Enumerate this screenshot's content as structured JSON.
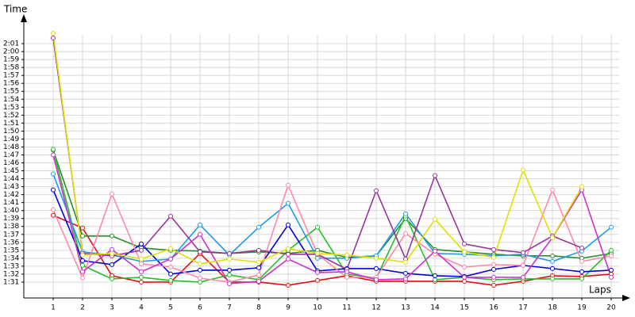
{
  "chart_data": {
    "type": "line",
    "y_label": "Time",
    "x_label": "Laps",
    "x": [
      1,
      2,
      3,
      4,
      5,
      6,
      7,
      8,
      9,
      10,
      11,
      12,
      13,
      14,
      15,
      16,
      17,
      18,
      19,
      20
    ],
    "xlim": [
      0,
      20.4
    ],
    "xticks": [
      1,
      2,
      3,
      4,
      5,
      6,
      7,
      8,
      9,
      10,
      11,
      12,
      13,
      14,
      15,
      16,
      17,
      18,
      19,
      20
    ],
    "ylim": [
      89,
      123
    ],
    "yticks": [
      {
        "value": 91,
        "label": "1:31"
      },
      {
        "value": 92,
        "label": "1:32"
      },
      {
        "value": 93,
        "label": "1:33"
      },
      {
        "value": 94,
        "label": "1:34"
      },
      {
        "value": 95,
        "label": "1:35"
      },
      {
        "value": 96,
        "label": "1:36"
      },
      {
        "value": 97,
        "label": "1:37"
      },
      {
        "value": 98,
        "label": "1:38"
      },
      {
        "value": 99,
        "label": "1:39"
      },
      {
        "value": 100,
        "label": "1:40"
      },
      {
        "value": 101,
        "label": "1:41"
      },
      {
        "value": 102,
        "label": "1:42"
      },
      {
        "value": 103,
        "label": "1:43"
      },
      {
        "value": 104,
        "label": "1:44"
      },
      {
        "value": 105,
        "label": "1:45"
      },
      {
        "value": 106,
        "label": "1:46"
      },
      {
        "value": 107,
        "label": "1:47"
      },
      {
        "value": 108,
        "label": "1:48"
      },
      {
        "value": 109,
        "label": "1:49"
      },
      {
        "value": 110,
        "label": "1:50"
      },
      {
        "value": 111,
        "label": "1:51"
      },
      {
        "value": 112,
        "label": "1:52"
      },
      {
        "value": 113,
        "label": "1:53"
      },
      {
        "value": 114,
        "label": "1:54"
      },
      {
        "value": 115,
        "label": "1:55"
      },
      {
        "value": 116,
        "label": "1:56"
      },
      {
        "value": 117,
        "label": "1:57"
      },
      {
        "value": 118,
        "label": "1:58"
      },
      {
        "value": 119,
        "label": "1:59"
      },
      {
        "value": 120,
        "label": "2:00"
      },
      {
        "value": 121,
        "label": "2:01"
      }
    ],
    "grid": true,
    "series": [
      {
        "color": "#e01010",
        "values": [
          99.4,
          97.8,
          91.8,
          91,
          91,
          94.6,
          91,
          91,
          90.6,
          91.2,
          91.8,
          91.1,
          91.1,
          91.1,
          91.1,
          90.6,
          91.1,
          91.8,
          91.7,
          92
        ]
      },
      {
        "color": "#2e8b2e",
        "values": [
          107.6,
          96.8,
          96.8,
          95.3,
          95,
          94.9,
          94.6,
          94.8,
          94.6,
          95,
          94.1,
          94.3,
          99,
          95.1,
          94.8,
          94.5,
          94.3,
          94.3,
          94,
          94.6
        ]
      },
      {
        "color": "#22c022",
        "values": [
          107.7,
          93.1,
          91.4,
          91.6,
          91.2,
          91,
          91.9,
          91.3,
          95,
          97.9,
          92,
          91.5,
          99.3,
          91.3,
          91.6,
          91.3,
          91.4,
          91.4,
          91.4,
          95
        ]
      },
      {
        "color": "#0000dd",
        "values": [
          102.6,
          93.7,
          93.2,
          95.8,
          92,
          92.5,
          92.5,
          92.8,
          98.2,
          92.4,
          92.7,
          92.7,
          92.1,
          91.8,
          91.7,
          92.6,
          93.1,
          92.7,
          92.3,
          92.5
        ]
      },
      {
        "color": "#1e9be8",
        "values": [
          104.6,
          94.8,
          94.4,
          93.6,
          93.9,
          98.2,
          94.4,
          97.9,
          100.9,
          94,
          94,
          94.3,
          99.6,
          94.6,
          94.5,
          94.3,
          94.5,
          93.6,
          94.9,
          97.9
        ]
      },
      {
        "color": "#ff88aa",
        "values": [
          100.1,
          91.5,
          102.1,
          93.3,
          92.9,
          91.5,
          91,
          91.9,
          103.2,
          94.5,
          91.6,
          91.6,
          97.1,
          94.5,
          92.9,
          93.2,
          93.1,
          102.6,
          93.6,
          94.3
        ]
      },
      {
        "color": "#993399",
        "values": [
          121.7,
          94.6,
          94.3,
          95,
          99.3,
          94.8,
          94.6,
          95,
          94.5,
          94.5,
          92.6,
          102.5,
          93.9,
          104.4,
          95.8,
          95.1,
          94.7,
          96.8,
          95.3,
          null
        ]
      },
      {
        "color": "#cc33cc",
        "values": [
          107,
          92.3,
          95.1,
          92.3,
          93.9,
          97,
          90.8,
          91.1,
          93.9,
          92.2,
          92.3,
          91.3,
          91.4,
          94.9,
          91.6,
          91.6,
          91.6,
          96.6,
          102.6,
          91.6
        ]
      },
      {
        "color": "#e0e000",
        "values": [
          122.3,
          94.4,
          94.6,
          93.9,
          95.2,
          93.3,
          93.9,
          93.5,
          95.2,
          94.6,
          94.4,
          94,
          93.5,
          98.9,
          94.8,
          94.1,
          105.1,
          96.6,
          103,
          null
        ]
      }
    ]
  }
}
